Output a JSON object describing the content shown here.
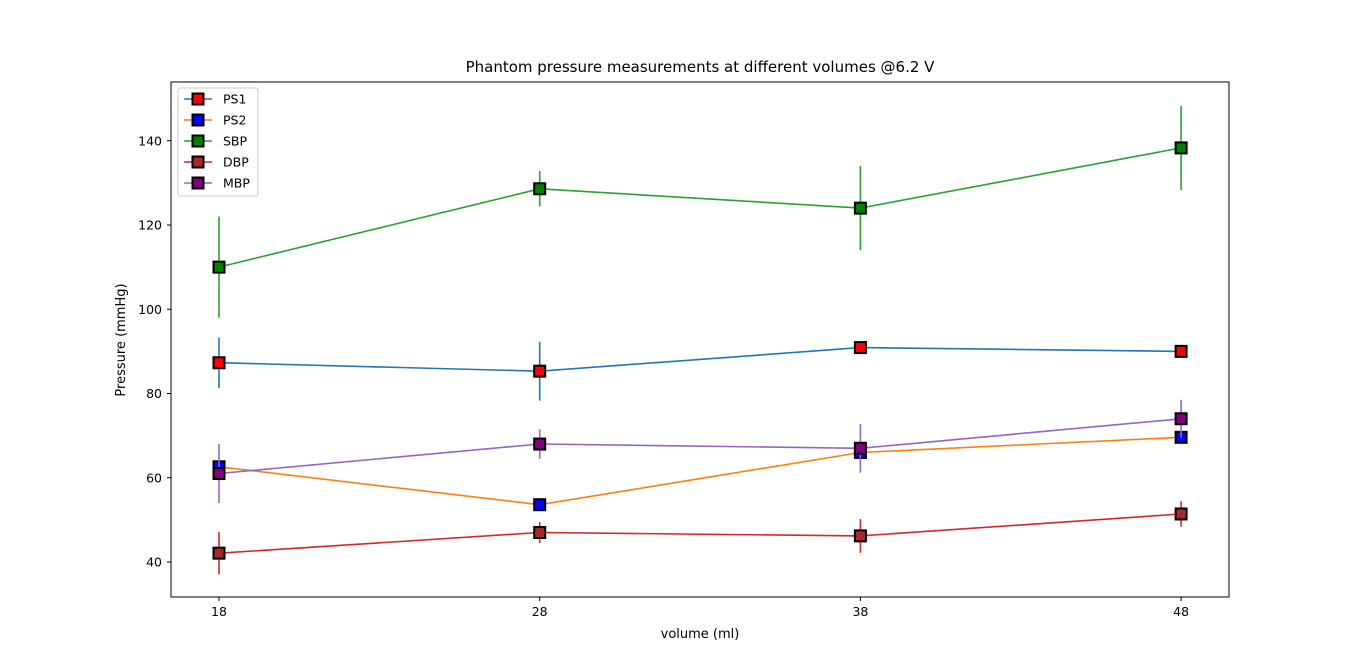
{
  "chart_data": {
    "type": "line",
    "title": "Phantom pressure measurements at different volumes @6.2 V",
    "xlabel": "volume (ml)",
    "ylabel": "Pressure (mmHg)",
    "x": [
      18,
      28,
      38,
      48
    ],
    "xticks": [
      "18",
      "28",
      "38",
      "48"
    ],
    "yticks": [
      40,
      60,
      80,
      100,
      120,
      140
    ],
    "ylim": [
      32,
      154
    ],
    "grid": false,
    "legend_position": "top-left",
    "series": [
      {
        "name": "PS1",
        "line_color": "#1f77b4",
        "marker_color": "#ff0000",
        "values": [
          87.3,
          85.3,
          90.9,
          90.0
        ],
        "errors": [
          6.0,
          7.0,
          null,
          null
        ]
      },
      {
        "name": "PS2",
        "line_color": "#ff7f0e",
        "marker_color": "#0000ff",
        "values": [
          62.6,
          53.6,
          66.0,
          69.6
        ],
        "errors": [
          null,
          null,
          null,
          null
        ]
      },
      {
        "name": "SBP",
        "line_color": "#2ca02c",
        "marker_color": "#008000",
        "values": [
          110.0,
          128.6,
          124.0,
          138.3
        ],
        "errors": [
          12.0,
          4.2,
          10.0,
          10.0
        ]
      },
      {
        "name": "DBP",
        "line_color": "#d62728",
        "marker_color": "#a52a2a",
        "values": [
          42.1,
          47.0,
          46.2,
          51.4
        ],
        "errors": [
          5.0,
          2.5,
          4.0,
          3.0
        ]
      },
      {
        "name": "MBP",
        "line_color": "#9467bd",
        "marker_color": "#800080",
        "values": [
          61.0,
          68.0,
          67.0,
          74.0
        ],
        "errors": [
          7.0,
          3.5,
          5.8,
          4.5
        ]
      }
    ]
  }
}
